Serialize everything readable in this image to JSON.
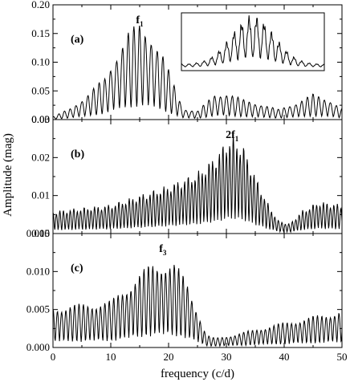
{
  "chart_data": {
    "type": "line",
    "shared_x_label": "frequency (c/d)",
    "shared_y_label": "Amplitude (mag)",
    "xlim": [
      0,
      50
    ],
    "x_ticks": [
      "0",
      "10",
      "20",
      "30",
      "40",
      "50"
    ],
    "panels": [
      {
        "label": "(a)",
        "peak_label": "f",
        "peak_sub": "1",
        "peak_x": 15,
        "ylim": [
          0,
          0.2
        ],
        "y_ticks": [
          "0.00",
          "0.05",
          "0.10",
          "0.15",
          "0.20"
        ],
        "spacing": 1.0,
        "envelope": [
          [
            0,
            0.005
          ],
          [
            3,
            0.02
          ],
          [
            6,
            0.045
          ],
          [
            9,
            0.075
          ],
          [
            11,
            0.12
          ],
          [
            13,
            0.155
          ],
          [
            15,
            0.17
          ],
          [
            17,
            0.155
          ],
          [
            19,
            0.115
          ],
          [
            21,
            0.06
          ],
          [
            22.5,
            0.02
          ],
          [
            25,
            0.015
          ],
          [
            28,
            0.045
          ],
          [
            30,
            0.048
          ],
          [
            33,
            0.035
          ],
          [
            36,
            0.028
          ],
          [
            39,
            0.018
          ],
          [
            42,
            0.03
          ],
          [
            45,
            0.045
          ],
          [
            48,
            0.035
          ],
          [
            50,
            0.02
          ]
        ],
        "inset": true
      },
      {
        "label": "(b)",
        "peak_label": "2f",
        "peak_sub": "1",
        "peak_x": 31,
        "ylim": [
          0,
          0.035
        ],
        "y_ticks": [
          "0.00",
          "0.01",
          "0.02",
          "0.03"
        ],
        "spacing": 0.6,
        "envelope": [
          [
            0,
            0.007
          ],
          [
            5,
            0.008
          ],
          [
            10,
            0.009
          ],
          [
            15,
            0.012
          ],
          [
            20,
            0.015
          ],
          [
            25,
            0.019
          ],
          [
            28,
            0.024
          ],
          [
            30,
            0.029
          ],
          [
            31,
            0.031
          ],
          [
            33,
            0.027
          ],
          [
            35,
            0.018
          ],
          [
            37,
            0.01
          ],
          [
            39,
            0.004
          ],
          [
            41,
            0.003
          ],
          [
            43,
            0.007
          ],
          [
            46,
            0.01
          ],
          [
            50,
            0.009
          ]
        ],
        "inset": false
      },
      {
        "label": "(c)",
        "peak_label": "f",
        "peak_sub": "3",
        "peak_x": 19,
        "ylim": [
          0,
          0.018
        ],
        "y_ticks": [
          "0.000",
          "0.005",
          "0.010",
          "0.015"
        ],
        "spacing": 0.75,
        "envelope": [
          [
            0,
            0.0065
          ],
          [
            5,
            0.007
          ],
          [
            10,
            0.0075
          ],
          [
            14,
            0.011
          ],
          [
            17,
            0.0135
          ],
          [
            19,
            0.014
          ],
          [
            21,
            0.0135
          ],
          [
            23,
            0.011
          ],
          [
            25,
            0.006
          ],
          [
            26.5,
            0.002
          ],
          [
            28,
            0.0015
          ],
          [
            32,
            0.0022
          ],
          [
            36,
            0.0032
          ],
          [
            40,
            0.004
          ],
          [
            45,
            0.005
          ],
          [
            50,
            0.006
          ]
        ],
        "inset": false
      }
    ]
  }
}
